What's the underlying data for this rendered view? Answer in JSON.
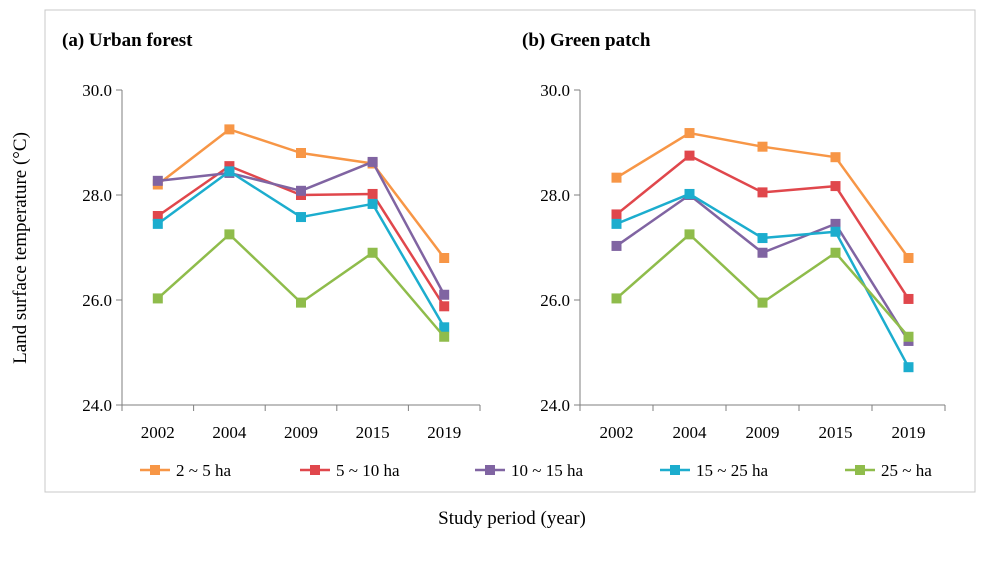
{
  "figure": {
    "ylabel": "Land surface temperature (°C)",
    "xlabel": "Study period (year)"
  },
  "chart_data": [
    {
      "type": "line",
      "title": "(a) Urban forest",
      "x": [
        "2002",
        "2004",
        "2009",
        "2015",
        "2019"
      ],
      "ylim": [
        24.0,
        30.0
      ],
      "yticks": [
        "24.0",
        "26.0",
        "28.0",
        "30.0"
      ],
      "grid": false,
      "series": [
        {
          "name": "2 ~ 5 ha",
          "color": "#F79646",
          "values": [
            28.2,
            29.25,
            28.8,
            28.6,
            26.8
          ]
        },
        {
          "name": "5 ~ 10 ha",
          "color": "#E0474C",
          "values": [
            27.6,
            28.55,
            28.0,
            28.02,
            25.88
          ]
        },
        {
          "name": "10 ~ 15 ha",
          "color": "#8064A2",
          "values": [
            28.27,
            28.42,
            28.08,
            28.63,
            26.1
          ]
        },
        {
          "name": "15 ~ 25 ha",
          "color": "#1CADCE",
          "values": [
            27.45,
            28.45,
            27.58,
            27.83,
            25.48
          ]
        },
        {
          "name": "25 ~ ha",
          "color": "#8FBC4B",
          "values": [
            26.03,
            27.25,
            25.95,
            26.9,
            25.3
          ]
        }
      ]
    },
    {
      "type": "line",
      "title": "(b) Green patch",
      "x": [
        "2002",
        "2004",
        "2009",
        "2015",
        "2019"
      ],
      "ylim": [
        24.0,
        30.0
      ],
      "yticks": [
        "24.0",
        "26.0",
        "28.0",
        "30.0"
      ],
      "grid": false,
      "series": [
        {
          "name": "2 ~ 5 ha",
          "color": "#F79646",
          "values": [
            28.33,
            29.18,
            28.92,
            28.72,
            26.8
          ]
        },
        {
          "name": "5 ~ 10 ha",
          "color": "#E0474C",
          "values": [
            27.63,
            28.75,
            28.05,
            28.17,
            26.02
          ]
        },
        {
          "name": "10 ~ 15 ha",
          "color": "#8064A2",
          "values": [
            27.03,
            28.0,
            26.9,
            27.45,
            25.22
          ]
        },
        {
          "name": "15 ~ 25 ha",
          "color": "#1CADCE",
          "values": [
            27.45,
            28.02,
            27.18,
            27.3,
            24.72
          ]
        },
        {
          "name": "25 ~ ha",
          "color": "#8FBC4B",
          "values": [
            26.03,
            27.25,
            25.95,
            26.9,
            25.3
          ]
        }
      ]
    }
  ],
  "legend": {
    "placement": "bottom",
    "items": [
      {
        "name": "2 ~ 5 ha",
        "color": "#F79646"
      },
      {
        "name": "5 ~ 10 ha",
        "color": "#E0474C"
      },
      {
        "name": "10 ~ 15 ha",
        "color": "#8064A2"
      },
      {
        "name": "15 ~ 25 ha",
        "color": "#1CADCE"
      },
      {
        "name": "25 ~ ha",
        "color": "#8FBC4B"
      }
    ]
  }
}
